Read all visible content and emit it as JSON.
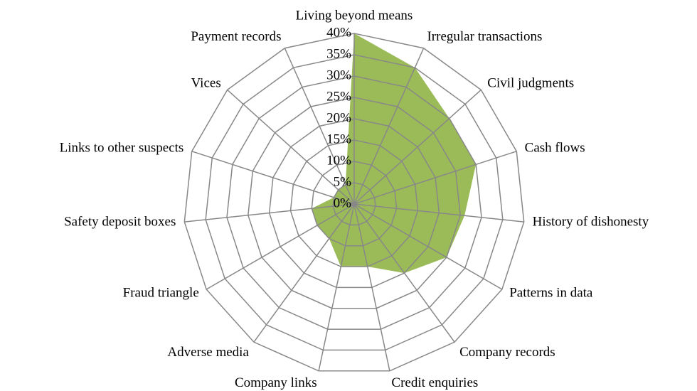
{
  "chart_data": {
    "type": "radar",
    "categories": [
      "Living beyond means",
      "Irregular transactions",
      "Civil judgments",
      "Cash flows",
      "History of dishonesty",
      "Patterns in data",
      "Company records",
      "Credit enquiries",
      "Company links",
      "Adverse media",
      "Fraud triangle",
      "Safety deposit boxes",
      "Links to other suspects",
      "Vices",
      "Payment records"
    ],
    "values": [
      40,
      35,
      30,
      30,
      26,
      25,
      20,
      15,
      15,
      10,
      10,
      10,
      5,
      5,
      5
    ],
    "color": "#9bbb59",
    "ylim": [
      0,
      40
    ],
    "yticks": [
      {
        "value": 0,
        "label": "0%"
      },
      {
        "value": 5,
        "label": "5%"
      },
      {
        "value": 10,
        "label": "10%"
      },
      {
        "value": 15,
        "label": "15%"
      },
      {
        "value": 20,
        "label": "20%"
      },
      {
        "value": 25,
        "label": "25%"
      },
      {
        "value": 30,
        "label": "30%"
      },
      {
        "value": 35,
        "label": "35%"
      },
      {
        "value": 40,
        "label": "40%"
      }
    ],
    "grid": true
  }
}
